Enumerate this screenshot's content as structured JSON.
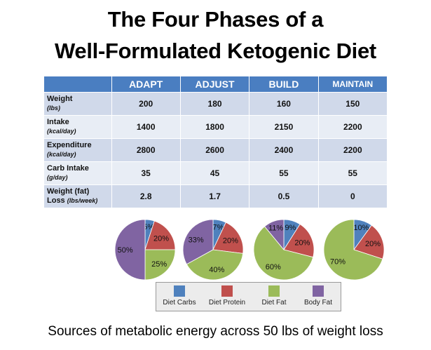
{
  "title_line1": "The Four Phases of a",
  "title_line2": "Well-Formulated Ketogenic Diet",
  "table": {
    "headers": [
      "ADAPT",
      "ADJUST",
      "BUILD",
      "MAINTAIN"
    ],
    "rows": [
      {
        "label": "Weight",
        "unit": "(lbs)",
        "values": [
          "200",
          "180",
          "160",
          "150"
        ]
      },
      {
        "label": "Intake",
        "unit": "(kcal/day)",
        "values": [
          "1400",
          "1800",
          "2150",
          "2200"
        ]
      },
      {
        "label": "Expenditure",
        "unit": "(kcal/day)",
        "values": [
          "2800",
          "2600",
          "2400",
          "2200"
        ]
      },
      {
        "label": "Carb Intake",
        "unit": "(g/day)",
        "values": [
          "35",
          "45",
          "55",
          "55"
        ]
      },
      {
        "label": "Weight (fat)",
        "label2": "Loss",
        "unit": "(lbs/week)",
        "values": [
          "2.8",
          "1.7",
          "0.5",
          "0"
        ]
      }
    ]
  },
  "chart_data": {
    "type": "pie",
    "series_names": [
      "Diet Carbs",
      "Diet Protein",
      "Diet Fat",
      "Body Fat"
    ],
    "colors": [
      "#4f81bd",
      "#c0504d",
      "#9bbb59",
      "#8064a2"
    ],
    "pies": [
      {
        "values": [
          5,
          20,
          25,
          50
        ],
        "labels": [
          "5%",
          "20%",
          "25%",
          "50%"
        ]
      },
      {
        "values": [
          7,
          20,
          40,
          33
        ],
        "labels": [
          "7%",
          "20%",
          "40%",
          "33%"
        ]
      },
      {
        "values": [
          9,
          20,
          60,
          11
        ],
        "labels": [
          "9%",
          "20%",
          "60%",
          "11%"
        ]
      },
      {
        "values": [
          10,
          20,
          70,
          0
        ],
        "labels": [
          "10%",
          "20%",
          "70%",
          ""
        ]
      }
    ]
  },
  "footer": "Sources of metabolic energy across 50 lbs of weight loss"
}
